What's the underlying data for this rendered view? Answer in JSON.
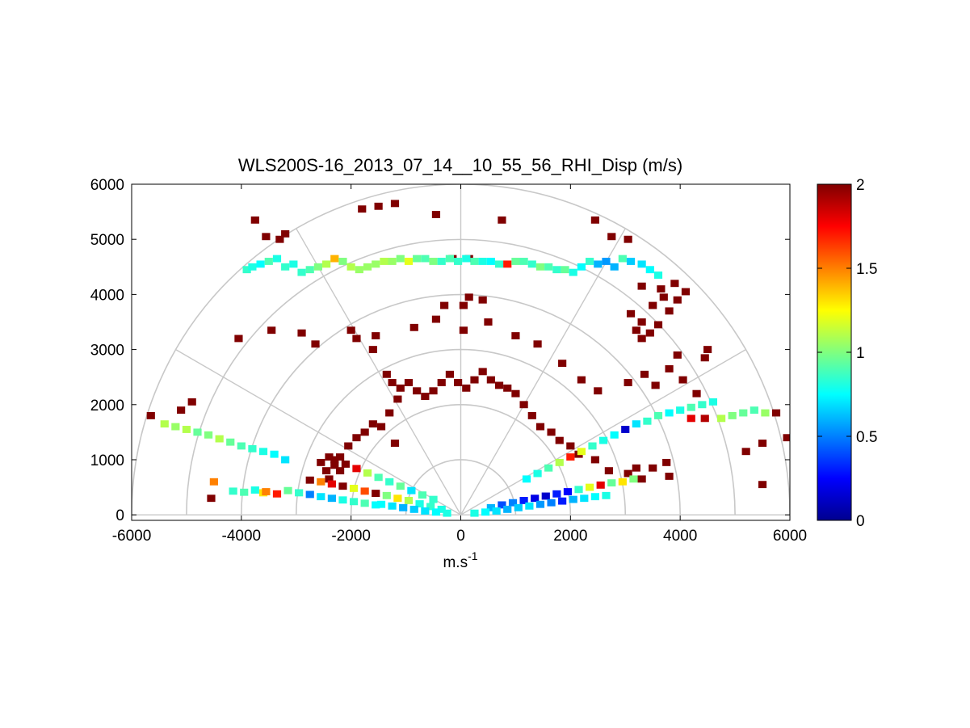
{
  "chart_data": {
    "type": "heatmap",
    "subtype": "polar RHI sector scan",
    "title": "WLS200S-16_2013_07_14__10_55_56_RHI_Disp (m/s)",
    "xlabel": "m.s",
    "xlabel_superscript": "-1",
    "ylabel": "",
    "xlim": [
      -6000,
      6000
    ],
    "ylim": [
      -100,
      6000
    ],
    "x_ticks": [
      -6000,
      -4000,
      -2000,
      0,
      2000,
      4000,
      6000
    ],
    "y_ticks": [
      0,
      1000,
      2000,
      3000,
      4000,
      5000,
      6000
    ],
    "x_tick_labels": [
      "-6000",
      "-4000",
      "-2000",
      "0",
      "2000",
      "4000",
      "6000"
    ],
    "y_tick_labels": [
      "0",
      "1000",
      "2000",
      "3000",
      "4000",
      "5000",
      "6000"
    ],
    "polar_grid": {
      "range_rings": [
        1000,
        2000,
        3000,
        4000,
        5000,
        6000
      ],
      "spokes_deg": [
        0,
        30,
        60,
        90,
        120,
        150,
        180
      ],
      "color": "#c8c8c8"
    },
    "colorbar": {
      "colormap": "jet",
      "min": 0,
      "max": 2,
      "ticks": [
        0,
        0.5,
        1,
        1.5,
        2
      ],
      "tick_labels": [
        "0",
        "0.5",
        "1",
        "1.5",
        "2"
      ]
    },
    "cells": [
      [
        -3750,
        5350,
        2
      ],
      [
        -3550,
        5050,
        2
      ],
      [
        -3300,
        5000,
        2
      ],
      [
        -3200,
        5100,
        2
      ],
      [
        -1800,
        5550,
        2
      ],
      [
        -1500,
        5600,
        2
      ],
      [
        -1200,
        5650,
        2
      ],
      [
        -450,
        5450,
        2
      ],
      [
        -150,
        4650,
        2
      ],
      [
        150,
        4650,
        2
      ],
      [
        750,
        5350,
        2
      ],
      [
        2450,
        5350,
        2
      ],
      [
        2750,
        5050,
        2
      ],
      [
        3050,
        5000,
        2
      ],
      [
        -3900,
        4450,
        0.85
      ],
      [
        -3800,
        4500,
        0.8
      ],
      [
        -3650,
        4550,
        0.75
      ],
      [
        -3500,
        4600,
        0.9
      ],
      [
        -3350,
        4650,
        0.8
      ],
      [
        -3200,
        4500,
        0.85
      ],
      [
        -3050,
        4550,
        0.8
      ],
      [
        -2900,
        4400,
        0.85
      ],
      [
        -2750,
        4450,
        0.9
      ],
      [
        -2600,
        4500,
        1.0
      ],
      [
        -2450,
        4550,
        1.1
      ],
      [
        -2300,
        4650,
        1.4
      ],
      [
        -2150,
        4600,
        1.0
      ],
      [
        -2000,
        4500,
        1.1
      ],
      [
        -1850,
        4450,
        1.05
      ],
      [
        -1700,
        4500,
        1.05
      ],
      [
        -1550,
        4550,
        1.05
      ],
      [
        -1400,
        4600,
        1.1
      ],
      [
        -1250,
        4600,
        1.05
      ],
      [
        -1100,
        4650,
        1.0
      ],
      [
        -950,
        4600,
        1.2
      ],
      [
        -800,
        4650,
        0.95
      ],
      [
        -650,
        4650,
        0.9
      ],
      [
        -500,
        4600,
        1.0
      ],
      [
        -350,
        4600,
        0.85
      ],
      [
        -200,
        4650,
        0.9
      ],
      [
        -50,
        4600,
        0.85
      ],
      [
        100,
        4650,
        0.8
      ],
      [
        250,
        4600,
        0.9
      ],
      [
        400,
        4600,
        0.8
      ],
      [
        550,
        4600,
        0.75
      ],
      [
        700,
        4550,
        0.85
      ],
      [
        850,
        4550,
        1.7
      ],
      [
        1000,
        4600,
        0.95
      ],
      [
        1150,
        4600,
        0.9
      ],
      [
        1300,
        4550,
        0.85
      ],
      [
        1450,
        4500,
        1.0
      ],
      [
        1600,
        4500,
        0.9
      ],
      [
        1750,
        4450,
        0.85
      ],
      [
        1900,
        4450,
        0.95
      ],
      [
        2050,
        4400,
        0.8
      ],
      [
        2200,
        4500,
        0.75
      ],
      [
        2350,
        4600,
        0.85
      ],
      [
        2500,
        4550,
        0.6
      ],
      [
        2650,
        4600,
        0.55
      ],
      [
        2800,
        4500,
        0.6
      ],
      [
        2950,
        4650,
        0.9
      ],
      [
        3100,
        4600,
        0.65
      ],
      [
        3300,
        4550,
        0.7
      ],
      [
        3450,
        4450,
        0.75
      ],
      [
        3600,
        4350,
        0.8
      ],
      [
        3200,
        3350,
        2
      ],
      [
        3300,
        3200,
        2
      ],
      [
        3450,
        3300,
        2
      ],
      [
        3600,
        3450,
        2
      ],
      [
        3300,
        3500,
        2
      ],
      [
        3100,
        3650,
        2
      ],
      [
        3500,
        3800,
        2
      ],
      [
        3700,
        3950,
        2
      ],
      [
        3800,
        3700,
        2
      ],
      [
        3650,
        4100,
        2
      ],
      [
        3900,
        4200,
        2
      ],
      [
        3950,
        3900,
        2
      ],
      [
        4100,
        4050,
        2
      ],
      [
        3300,
        4150,
        2
      ],
      [
        4500,
        3000,
        2
      ],
      [
        4450,
        2850,
        2
      ],
      [
        -4050,
        3200,
        2
      ],
      [
        -3450,
        3350,
        2
      ],
      [
        -2900,
        3300,
        2
      ],
      [
        -2650,
        3100,
        2
      ],
      [
        -2000,
        3350,
        2
      ],
      [
        -1900,
        3200,
        2
      ],
      [
        -1550,
        3250,
        2
      ],
      [
        -1600,
        3000,
        2
      ],
      [
        -850,
        3400,
        2
      ],
      [
        -450,
        3550,
        2
      ],
      [
        -300,
        3800,
        2
      ],
      [
        50,
        3800,
        2
      ],
      [
        150,
        3950,
        2
      ],
      [
        400,
        3900,
        2
      ],
      [
        50,
        3350,
        2
      ],
      [
        500,
        3500,
        2
      ],
      [
        1000,
        3250,
        2
      ],
      [
        1400,
        3100,
        2
      ],
      [
        1850,
        2750,
        2
      ],
      [
        2200,
        2450,
        2
      ],
      [
        2500,
        2250,
        2
      ],
      [
        3050,
        2400,
        2
      ],
      [
        3350,
        2550,
        2
      ],
      [
        3550,
        2350,
        2
      ],
      [
        3800,
        2650,
        2
      ],
      [
        3950,
        2900,
        2
      ],
      [
        4050,
        2450,
        2
      ],
      [
        4300,
        2200,
        2
      ],
      [
        -1350,
        2550,
        2
      ],
      [
        -1250,
        2400,
        2
      ],
      [
        -1100,
        2300,
        2
      ],
      [
        -950,
        2400,
        2
      ],
      [
        -800,
        2250,
        2
      ],
      [
        -650,
        2150,
        2
      ],
      [
        -500,
        2250,
        2
      ],
      [
        -350,
        2400,
        2
      ],
      [
        -200,
        2550,
        2
      ],
      [
        -50,
        2400,
        2
      ],
      [
        100,
        2300,
        2
      ],
      [
        250,
        2450,
        2
      ],
      [
        400,
        2600,
        2
      ],
      [
        550,
        2450,
        2
      ],
      [
        700,
        2350,
        2
      ],
      [
        850,
        2300,
        2
      ],
      [
        1000,
        2200,
        2
      ],
      [
        -1150,
        2100,
        2
      ],
      [
        -1300,
        1850,
        2
      ],
      [
        -1450,
        1600,
        2
      ],
      [
        -1600,
        1650,
        2
      ],
      [
        -1750,
        1500,
        2
      ],
      [
        -1900,
        1400,
        2
      ],
      [
        -2050,
        1250,
        2
      ],
      [
        -2200,
        1050,
        2
      ],
      [
        -1200,
        1300,
        2
      ],
      [
        1150,
        2000,
        2
      ],
      [
        1300,
        1800,
        2
      ],
      [
        1450,
        1600,
        2
      ],
      [
        1650,
        1500,
        2
      ],
      [
        1800,
        1350,
        2
      ],
      [
        2000,
        1250,
        2
      ],
      [
        2150,
        1100,
        2
      ],
      [
        2450,
        1000,
        2
      ],
      [
        2700,
        800,
        2
      ],
      [
        3050,
        750,
        2
      ],
      [
        3300,
        650,
        2
      ],
      [
        3500,
        850,
        2
      ],
      [
        3800,
        700,
        2
      ],
      [
        3750,
        950,
        2
      ],
      [
        -5650,
        1800,
        2
      ],
      [
        -5100,
        1900,
        2
      ],
      [
        -4900,
        2050,
        2
      ],
      [
        -2400,
        650,
        2
      ],
      [
        -2450,
        800,
        2
      ],
      [
        -2550,
        950,
        2
      ],
      [
        -2300,
        900,
        2
      ],
      [
        -2200,
        800,
        2
      ],
      [
        -2400,
        1050,
        2
      ],
      [
        -4500,
        600,
        1.5
      ],
      [
        -3600,
        400,
        1.3
      ],
      [
        -4550,
        300,
        2
      ],
      [
        -5400,
        1650,
        1.1
      ],
      [
        -5200,
        1600,
        1.05
      ],
      [
        -5000,
        1550,
        1.1
      ],
      [
        -4800,
        1500,
        0.95
      ],
      [
        -4600,
        1450,
        1.0
      ],
      [
        -4400,
        1380,
        1.1
      ],
      [
        -4200,
        1320,
        0.95
      ],
      [
        -4000,
        1250,
        0.9
      ],
      [
        -3800,
        1200,
        0.85
      ],
      [
        -3600,
        1150,
        0.8
      ],
      [
        -3400,
        1100,
        0.75
      ],
      [
        -3200,
        1000,
        0.7
      ],
      [
        -4150,
        430,
        0.85
      ],
      [
        -3950,
        410,
        0.9
      ],
      [
        -3750,
        450,
        0.8
      ],
      [
        -3550,
        420,
        1.5
      ],
      [
        -3350,
        380,
        1.7
      ],
      [
        -3150,
        440,
        0.95
      ],
      [
        -2950,
        400,
        0.85
      ],
      [
        -2750,
        370,
        0.5
      ],
      [
        -2550,
        330,
        0.7
      ],
      [
        -2350,
        300,
        0.6
      ],
      [
        -2150,
        270,
        0.8
      ],
      [
        -1950,
        240,
        0.85
      ],
      [
        -1750,
        210,
        0.9
      ],
      [
        -1550,
        180,
        0.75
      ],
      [
        -2750,
        630,
        2
      ],
      [
        -2550,
        600,
        1.5
      ],
      [
        -2350,
        560,
        1.8
      ],
      [
        -2150,
        520,
        2
      ],
      [
        -1950,
        480,
        1.2
      ],
      [
        -1750,
        430,
        1.6
      ],
      [
        -1550,
        390,
        2
      ],
      [
        -1350,
        350,
        1.0
      ],
      [
        -1150,
        300,
        1.3
      ],
      [
        -950,
        260,
        1.1
      ],
      [
        -750,
        200,
        0.8
      ],
      [
        -550,
        150,
        0.85
      ],
      [
        -350,
        100,
        0.8
      ],
      [
        -2300,
        1000,
        2
      ],
      [
        -2100,
        920,
        2
      ],
      [
        -1900,
        840,
        1.8
      ],
      [
        -1700,
        760,
        1.1
      ],
      [
        -1500,
        680,
        0.9
      ],
      [
        -1300,
        600,
        0.85
      ],
      [
        -1100,
        520,
        0.95
      ],
      [
        -900,
        440,
        0.7
      ],
      [
        -700,
        360,
        0.9
      ],
      [
        -500,
        280,
        0.85
      ],
      [
        4750,
        1750,
        1.1
      ],
      [
        4950,
        1800,
        1.0
      ],
      [
        5150,
        1850,
        0.95
      ],
      [
        5350,
        1900,
        0.9
      ],
      [
        5550,
        1850,
        1.05
      ],
      [
        5750,
        1850,
        2
      ],
      [
        5950,
        1400,
        2
      ],
      [
        5500,
        1300,
        2
      ],
      [
        5200,
        1150,
        2
      ],
      [
        5500,
        550,
        2
      ],
      [
        4200,
        1750,
        1.8
      ],
      [
        4450,
        1750,
        1.9
      ],
      [
        4600,
        2050,
        0.8
      ],
      [
        4400,
        2000,
        0.85
      ],
      [
        4200,
        1950,
        0.9
      ],
      [
        4000,
        1900,
        0.8
      ],
      [
        3800,
        1850,
        0.75
      ],
      [
        3600,
        1800,
        0.9
      ],
      [
        3400,
        1700,
        0.85
      ],
      [
        3200,
        1650,
        0.7
      ],
      [
        3000,
        1550,
        0.15
      ],
      [
        2800,
        1450,
        0.75
      ],
      [
        2600,
        1350,
        0.8
      ],
      [
        2400,
        1250,
        0.85
      ],
      [
        2200,
        1150,
        1.2
      ],
      [
        2000,
        1050,
        1.7
      ],
      [
        1800,
        950,
        1.1
      ],
      [
        1600,
        850,
        0.9
      ],
      [
        1400,
        750,
        0.8
      ],
      [
        1200,
        650,
        0.75
      ],
      [
        3200,
        850,
        2
      ],
      [
        3150,
        650,
        1.0
      ],
      [
        2950,
        600,
        1.3
      ],
      [
        2750,
        580,
        0.95
      ],
      [
        2550,
        540,
        1.8
      ],
      [
        2350,
        500,
        1.2
      ],
      [
        2150,
        460,
        0.85
      ],
      [
        1950,
        420,
        0.25
      ],
      [
        1750,
        380,
        0.3
      ],
      [
        1550,
        340,
        0.15
      ],
      [
        1350,
        300,
        0.2
      ],
      [
        1150,
        260,
        0.3
      ],
      [
        950,
        220,
        0.5
      ],
      [
        750,
        180,
        0.4
      ],
      [
        550,
        130,
        0.6
      ],
      [
        2650,
        350,
        0.8
      ],
      [
        2450,
        330,
        0.75
      ],
      [
        2250,
        300,
        0.7
      ],
      [
        2050,
        280,
        0.6
      ],
      [
        1850,
        250,
        0.3
      ],
      [
        1650,
        220,
        0.5
      ],
      [
        1450,
        190,
        0.55
      ],
      [
        1250,
        160,
        0.7
      ],
      [
        1050,
        130,
        0.65
      ],
      [
        850,
        100,
        0.6
      ],
      [
        650,
        70,
        0.7
      ],
      [
        450,
        50,
        0.75
      ],
      [
        250,
        30,
        0.8
      ],
      [
        -250,
        30,
        0.8
      ],
      [
        -450,
        50,
        0.75
      ],
      [
        -650,
        70,
        0.7
      ],
      [
        -850,
        100,
        0.65
      ],
      [
        -1050,
        130,
        0.6
      ],
      [
        -1250,
        160,
        0.7
      ],
      [
        -1450,
        190,
        0.75
      ]
    ]
  }
}
